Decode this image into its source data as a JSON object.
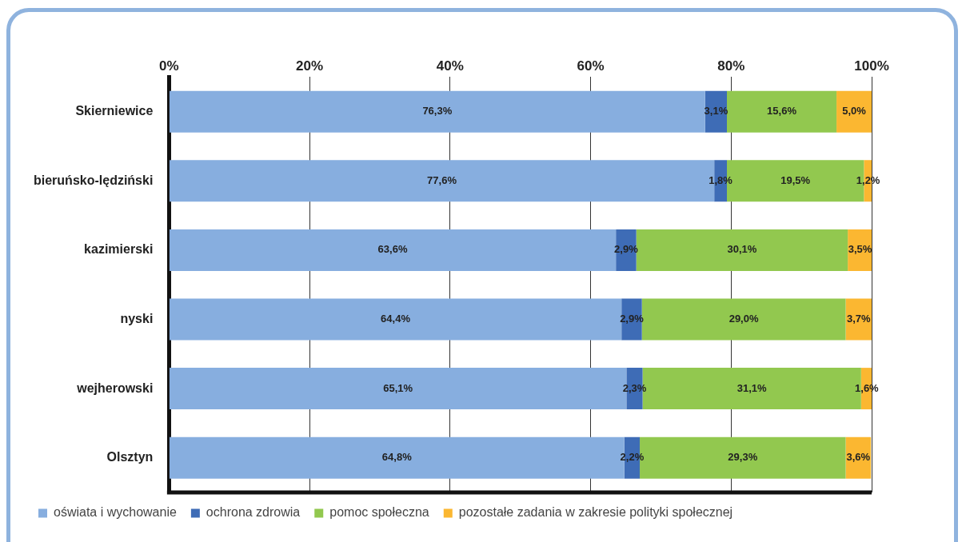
{
  "chart_data": {
    "type": "bar",
    "orientation": "horizontal",
    "stacked": true,
    "categories": [
      "Skierniewice",
      "bieruńsko-lędziński",
      "kazimierski",
      "nyski",
      "wejherowski",
      "Olsztyn"
    ],
    "series": [
      {
        "name": "oświata i wychowanie",
        "color": "#87aedf",
        "values": [
          76.3,
          77.6,
          63.6,
          64.4,
          65.1,
          64.8
        ],
        "value_labels": [
          "76,3%",
          "77,6%",
          "63,6%",
          "64,4%",
          "65,1%",
          "64,8%"
        ]
      },
      {
        "name": "ochrona zdrowia",
        "color": "#3e6cb6",
        "values": [
          3.1,
          1.8,
          2.9,
          2.9,
          2.3,
          2.2
        ],
        "value_labels": [
          "3,1%",
          "1,8%",
          "2,9%",
          "2,9%",
          "2,3%",
          "2,2%"
        ]
      },
      {
        "name": "pomoc społeczna",
        "color": "#92c84f",
        "values": [
          15.6,
          19.5,
          30.1,
          29.0,
          31.1,
          29.3
        ],
        "value_labels": [
          "15,6%",
          "19,5%",
          "30,1%",
          "29,0%",
          "31,1%",
          "29,3%"
        ]
      },
      {
        "name": "pozostałe zadania w zakresie polityki społecznej",
        "color": "#fbb731",
        "values": [
          5.0,
          1.2,
          3.5,
          3.7,
          1.6,
          3.6
        ],
        "value_labels": [
          "5,0%",
          "1,2%",
          "3,5%",
          "3,7%",
          "1,6%",
          "3,6%"
        ]
      }
    ],
    "xlim": [
      0,
      100
    ],
    "xticks": [
      {
        "value": 0,
        "label": "0%"
      },
      {
        "value": 20,
        "label": "20%"
      },
      {
        "value": 40,
        "label": "40%"
      },
      {
        "value": 60,
        "label": "60%"
      },
      {
        "value": 80,
        "label": "80%"
      },
      {
        "value": 100,
        "label": "100%"
      }
    ],
    "grid": "x",
    "legend": "bottom"
  }
}
